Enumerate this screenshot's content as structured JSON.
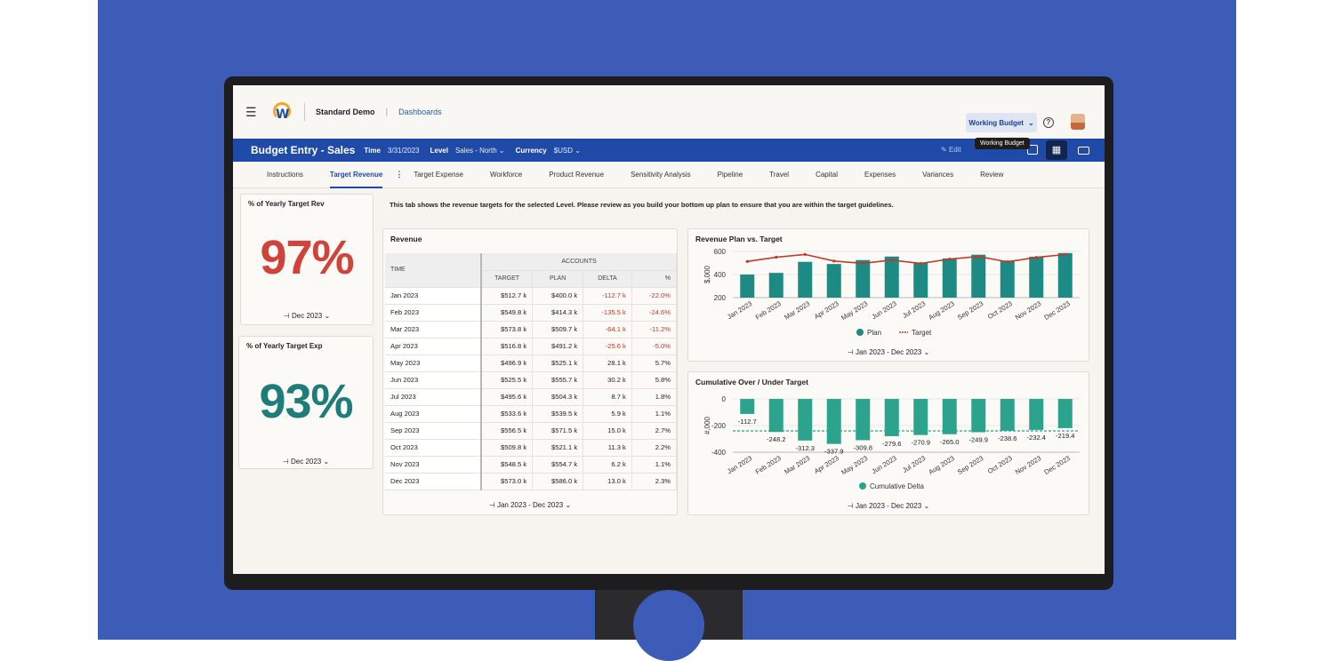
{
  "header": {
    "org": "Standard Demo",
    "breadcrumb": "Dashboards",
    "version_button": "Working Budget",
    "tooltip": "Working Budget",
    "help": "?"
  },
  "titlebar": {
    "title": "Budget Entry - Sales",
    "time_label": "Time",
    "time_value": "3/31/2023",
    "level_label": "Level",
    "level_value": "Sales - North",
    "currency_label": "Currency",
    "currency_value": "$USD",
    "edit": "Edit"
  },
  "tabs": [
    "Instructions",
    "Target Revenue",
    "Target Expense",
    "Workforce",
    "Product Revenue",
    "Sensitivity Analysis",
    "Pipeline",
    "Travel",
    "Capital",
    "Expenses",
    "Variances",
    "Review"
  ],
  "intro": "This tab shows the revenue targets for the selected Level.  Please review as you build your bottom up plan to ensure that you are within the target guidelines.",
  "kpi_rev": {
    "title": "% of Yearly Target Rev",
    "value": "97%",
    "color": "#d0433a",
    "footer": "Dec 2023"
  },
  "kpi_exp": {
    "title": "% of Yearly Target Exp",
    "value": "93%",
    "color": "#1e7c79",
    "footer": "Dec 2023"
  },
  "revenue_table": {
    "title": "Revenue",
    "group_header": "ACCOUNTS",
    "columns": [
      "TIME",
      "TARGET",
      "PLAN",
      "DELTA",
      "%"
    ],
    "rows": [
      [
        "Jan 2023",
        "$512.7 k",
        "$400.0 k",
        "-112.7 k",
        "-22.0%"
      ],
      [
        "Feb 2023",
        "$549.8 k",
        "$414.3 k",
        "-135.5 k",
        "-24.6%"
      ],
      [
        "Mar 2023",
        "$573.8 k",
        "$509.7 k",
        "-64.1 k",
        "-11.2%"
      ],
      [
        "Apr 2023",
        "$516.8 k",
        "$491.2 k",
        "-25.6 k",
        "-5.0%"
      ],
      [
        "May 2023",
        "$496.9 k",
        "$525.1 k",
        "28.1 k",
        "5.7%"
      ],
      [
        "Jun 2023",
        "$525.5 k",
        "$555.7 k",
        "30.2 k",
        "5.8%"
      ],
      [
        "Jul 2023",
        "$495.6 k",
        "$504.3 k",
        "8.7 k",
        "1.8%"
      ],
      [
        "Aug 2023",
        "$533.6 k",
        "$539.5 k",
        "5.9 k",
        "1.1%"
      ],
      [
        "Sep 2023",
        "$556.5 k",
        "$571.5 k",
        "15.0 k",
        "2.7%"
      ],
      [
        "Oct 2023",
        "$509.8 k",
        "$521.1 k",
        "11.3 k",
        "2.2%"
      ],
      [
        "Nov 2023",
        "$548.5 k",
        "$554.7 k",
        "6.2 k",
        "1.1%"
      ],
      [
        "Dec 2023",
        "$573.0 k",
        "$586.0 k",
        "13.0 k",
        "2.3%"
      ]
    ],
    "footer": "Jan 2023 - Dec 2023"
  },
  "chart_data": [
    {
      "type": "bar",
      "title": "Revenue Plan vs. Target",
      "ylabel": "$,000",
      "ylim": [
        200,
        600
      ],
      "yticks": [
        "600",
        "400",
        "200"
      ],
      "categories": [
        "Jan 2023",
        "Feb 2023",
        "Mar 2023",
        "Apr 2023",
        "May 2023",
        "Jun 2023",
        "Jul 2023",
        "Aug 2023",
        "Sep 2023",
        "Oct 2023",
        "Nov 2023",
        "Dec 2023"
      ],
      "series": [
        {
          "name": "Plan",
          "kind": "bar",
          "color": "#1e8a84",
          "values": [
            400.0,
            414.3,
            509.7,
            491.2,
            525.1,
            555.7,
            504.3,
            539.5,
            571.5,
            521.1,
            554.7,
            586.0
          ]
        },
        {
          "name": "Target",
          "kind": "line",
          "color": "#c0392b",
          "values": [
            512.7,
            549.8,
            573.8,
            516.8,
            496.9,
            525.5,
            495.6,
            533.6,
            556.5,
            509.8,
            548.5,
            573.0
          ]
        }
      ],
      "legend": "bottom",
      "footer": "Jan 2023 - Dec 2023"
    },
    {
      "type": "bar",
      "title": "Cumulative Over / Under Target",
      "ylabel": "#,000",
      "ylim": [
        -400,
        0
      ],
      "yticks": [
        "0",
        "-200",
        "-400"
      ],
      "categories": [
        "Jan 2023",
        "Feb 2023",
        "Mar 2023",
        "Apr 2023",
        "May 2023",
        "Jun 2023",
        "Jul 2023",
        "Aug 2023",
        "Sep 2023",
        "Oct 2023",
        "Nov 2023",
        "Dec 2023"
      ],
      "series": [
        {
          "name": "Cumulative Delta",
          "kind": "bar",
          "color": "#2ba38d",
          "values": [
            -112.7,
            -248.2,
            -312.3,
            -337.9,
            -309.8,
            -279.6,
            -270.9,
            -265.0,
            -249.9,
            -238.6,
            -232.4,
            -219.4
          ]
        }
      ],
      "labels": [
        "-112.7",
        "-248.2",
        "-312.3",
        "-337.9",
        "-309.8",
        "-279.6",
        "-270.9",
        "-265.0",
        "-249.9",
        "-238.6",
        "-232.4",
        "-219.4"
      ],
      "target_line": -240,
      "legend": "bottom",
      "footer": "Jan 2023 - Dec 2023"
    }
  ]
}
